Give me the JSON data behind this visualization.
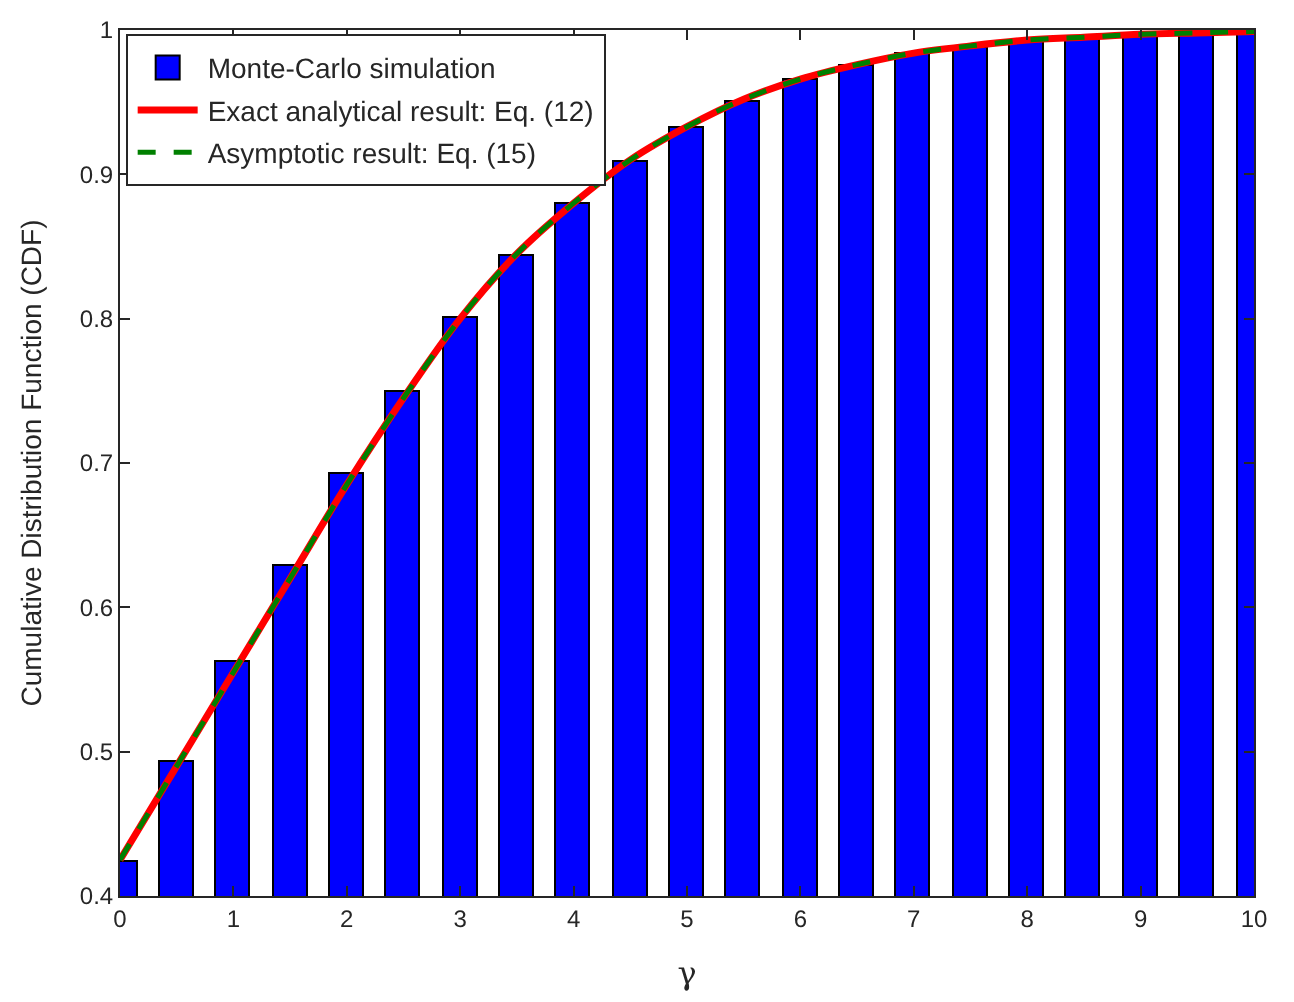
{
  "chart_data": {
    "type": "bar",
    "xlabel": "γ",
    "ylabel": "Cumulative Distribution Function (CDF)",
    "x": [
      0,
      0.5,
      1,
      1.5,
      2,
      2.5,
      3,
      3.5,
      4,
      4.5,
      5,
      5.5,
      6,
      6.5,
      7,
      7.5,
      8,
      8.5,
      9,
      9.5,
      10
    ],
    "series": [
      {
        "name": "Monte-Carlo simulation",
        "color": "#0000ff",
        "values": [
          0.424,
          0.493,
          0.562,
          0.629,
          0.692,
          0.749,
          0.8,
          0.843,
          0.88,
          0.909,
          0.932,
          0.95,
          0.965,
          0.975,
          0.983,
          0.988,
          0.992,
          0.995,
          0.997,
          0.998,
          0.999
        ]
      },
      {
        "name": "Exact analytical result: Eq. (12)",
        "type": "line",
        "line_style": "solid",
        "color": "#ff0000",
        "values": [
          0.425,
          0.49,
          0.555,
          0.62,
          0.685,
          0.745,
          0.8,
          0.845,
          0.88,
          0.91,
          0.933,
          0.952,
          0.966,
          0.976,
          0.984,
          0.989,
          0.993,
          0.995,
          0.997,
          0.998,
          0.999
        ]
      },
      {
        "name": "Asymptotic result: Eq. (15)",
        "type": "line",
        "line_style": "dashed",
        "color": "#008000",
        "values": [
          0.425,
          0.49,
          0.555,
          0.62,
          0.685,
          0.745,
          0.8,
          0.845,
          0.88,
          0.91,
          0.933,
          0.952,
          0.966,
          0.976,
          0.984,
          0.989,
          0.993,
          0.995,
          0.997,
          0.998,
          0.999
        ]
      }
    ],
    "xlim": [
      0,
      10
    ],
    "xticks": [
      0,
      1,
      2,
      3,
      4,
      5,
      6,
      7,
      8,
      9,
      10
    ],
    "ylim": [
      0.4,
      1
    ],
    "yticks": [
      0.4,
      0.5,
      0.6,
      0.7,
      0.8,
      0.9,
      1
    ],
    "legend": "top left",
    "marker": "none"
  }
}
